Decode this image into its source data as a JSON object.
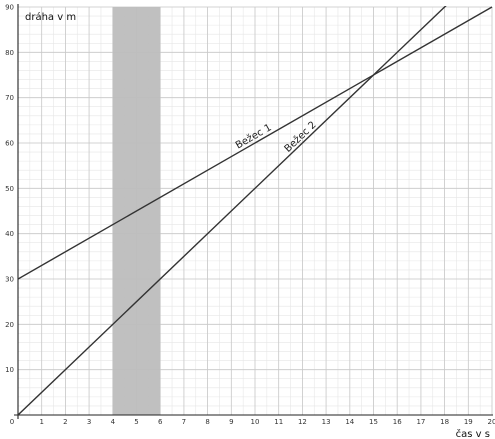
{
  "chart_data": {
    "type": "line",
    "xlabel": "čas v  s",
    "ylabel": "dráha v m",
    "xlim": [
      0,
      20
    ],
    "ylim": [
      0,
      90
    ],
    "grid": true,
    "minor_grid": true,
    "x_ticks": [
      0,
      1,
      2,
      3,
      4,
      5,
      6,
      7,
      8,
      9,
      10,
      11,
      12,
      13,
      14,
      15,
      16,
      17,
      18,
      19,
      20
    ],
    "y_ticks": [
      10,
      20,
      30,
      40,
      50,
      60,
      70,
      80,
      90
    ],
    "origin_label": "0",
    "shaded_region": {
      "x_from": 4,
      "x_to": 6,
      "color": "#bdbdbd"
    },
    "series": [
      {
        "name": "Bežec 1",
        "x": [
          0,
          20
        ],
        "y": [
          30,
          90
        ],
        "color": "#333333"
      },
      {
        "name": "Bežec 2",
        "x": [
          0,
          20
        ],
        "y": [
          0,
          100
        ],
        "color": "#333333"
      }
    ],
    "series_label_positions": [
      {
        "series": 0,
        "x": 10,
        "label_offset": 0.0
      },
      {
        "series": 1,
        "x": 12,
        "label_offset": 0.0
      }
    ]
  }
}
